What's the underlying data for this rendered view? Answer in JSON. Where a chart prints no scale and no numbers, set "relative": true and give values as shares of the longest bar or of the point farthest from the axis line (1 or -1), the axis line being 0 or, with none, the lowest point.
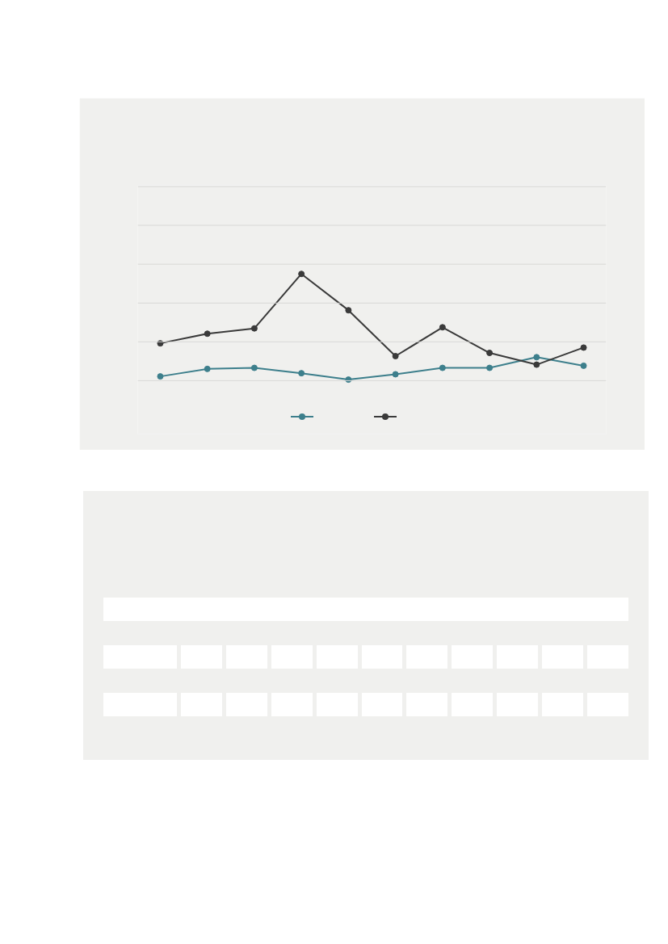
{
  "chart_data": {
    "type": "line",
    "relative": true,
    "categories": [
      null,
      null,
      null,
      null,
      null,
      null,
      null,
      null,
      null,
      null
    ],
    "series": [
      {
        "color": "#3d7f8c",
        "values": [
          0.04,
          0.11,
          0.12,
          0.07,
          0.01,
          0.06,
          0.12,
          0.12,
          0.22,
          0.14
        ]
      },
      {
        "color": "#3a3a3a",
        "values": [
          0.35,
          0.44,
          0.49,
          1,
          0.66,
          0.23,
          0.5,
          0.26,
          0.15,
          0.31
        ]
      }
    ],
    "ref_lines": [
      {
        "axis": "y",
        "value": 0,
        "color": "#d8d8d6"
      },
      {
        "axis": "y",
        "value": 0.364,
        "color": "#d8d8d6"
      },
      {
        "axis": "y",
        "value": 0.727,
        "color": "#d8d8d6"
      },
      {
        "axis": "y",
        "value": 1.091,
        "color": "#d8d8d6"
      },
      {
        "axis": "y",
        "value": 1.455,
        "color": "#d8d8d6"
      },
      {
        "axis": "y",
        "value": 1.818,
        "color": "#d8d8d6"
      }
    ],
    "marker": "circle",
    "line_style": "solid",
    "tick_labels": false
  }
}
